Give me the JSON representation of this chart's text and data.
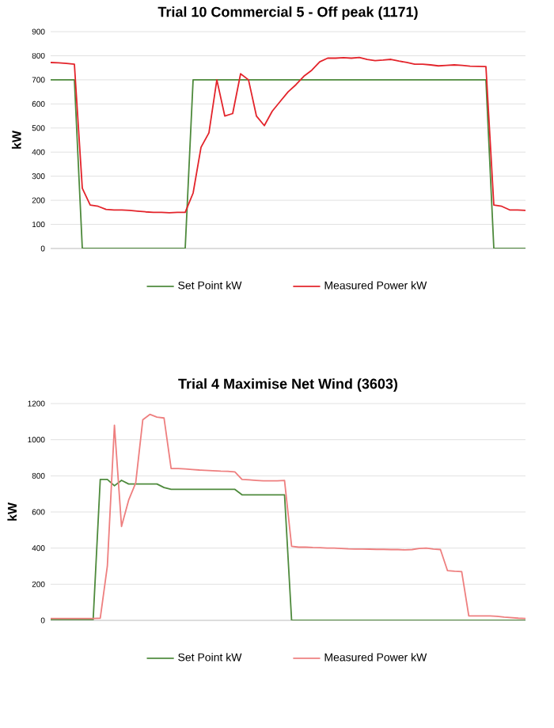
{
  "chart_data": [
    {
      "type": "line",
      "title": "Trial 10 Commercial 5 - Off peak (1171)",
      "ylabel": "kW",
      "ylim": [
        0,
        900
      ],
      "yticks": [
        0,
        100,
        200,
        300,
        400,
        500,
        600,
        700,
        800,
        900
      ],
      "grid": "y",
      "legend": "bottom",
      "marker": "none",
      "categories": [
        null,
        null,
        null,
        null,
        null,
        null,
        null,
        null,
        null,
        null,
        null,
        null,
        null,
        null,
        null,
        null,
        null,
        null,
        null,
        null,
        null,
        null,
        null,
        null,
        null,
        null,
        null,
        null,
        null,
        null,
        null,
        null,
        null,
        null,
        null,
        null,
        null,
        null,
        null,
        null,
        null,
        null,
        null,
        null,
        null,
        null,
        null,
        null,
        null,
        null,
        null,
        null,
        null,
        null,
        null,
        null,
        null,
        null,
        null,
        null,
        null
      ],
      "series": [
        {
          "name": "Set Point kW",
          "color": "#4e8a3c",
          "values": [
            700,
            700,
            700,
            700,
            0,
            0,
            0,
            0,
            0,
            0,
            0,
            0,
            0,
            0,
            0,
            0,
            0,
            0,
            700,
            700,
            700,
            700,
            700,
            700,
            700,
            700,
            700,
            700,
            700,
            700,
            700,
            700,
            700,
            700,
            700,
            700,
            700,
            700,
            700,
            700,
            700,
            700,
            700,
            700,
            700,
            700,
            700,
            700,
            700,
            700,
            700,
            700,
            700,
            700,
            700,
            700,
            0,
            0,
            0,
            0,
            0
          ]
        },
        {
          "name": "Measured Power kW",
          "color": "#e3242b",
          "values": [
            772,
            771,
            768,
            765,
            250,
            180,
            175,
            162,
            160,
            160,
            158,
            155,
            152,
            150,
            150,
            148,
            150,
            150,
            230,
            420,
            480,
            700,
            550,
            560,
            725,
            700,
            550,
            510,
            570,
            610,
            650,
            680,
            715,
            740,
            775,
            790,
            790,
            792,
            790,
            793,
            785,
            780,
            782,
            785,
            778,
            772,
            765,
            765,
            762,
            758,
            760,
            762,
            760,
            757,
            756,
            755,
            180,
            175,
            160,
            160,
            158
          ]
        }
      ]
    },
    {
      "type": "line",
      "title": "Trial 4 Maximise Net Wind (3603)",
      "ylabel": "kW",
      "ylim": [
        0,
        1200
      ],
      "yticks": [
        0,
        200,
        400,
        600,
        800,
        1000,
        1200
      ],
      "grid": "y",
      "legend": "bottom",
      "marker": "none",
      "categories": [
        null,
        null,
        null,
        null,
        null,
        null,
        null,
        null,
        null,
        null,
        null,
        null,
        null,
        null,
        null,
        null,
        null,
        null,
        null,
        null,
        null,
        null,
        null,
        null,
        null,
        null,
        null,
        null,
        null,
        null,
        null,
        null,
        null,
        null,
        null,
        null,
        null,
        null,
        null,
        null,
        null,
        null,
        null,
        null,
        null,
        null,
        null,
        null,
        null,
        null,
        null,
        null,
        null,
        null,
        null,
        null,
        null,
        null,
        null,
        null,
        null,
        null,
        null,
        null,
        null,
        null,
        null,
        null
      ],
      "series": [
        {
          "name": "Set Point kW",
          "color": "#4e8a3c",
          "values": [
            5,
            5,
            5,
            5,
            5,
            5,
            5,
            780,
            780,
            745,
            775,
            755,
            755,
            755,
            755,
            755,
            735,
            725,
            725,
            725,
            725,
            725,
            725,
            725,
            725,
            725,
            725,
            695,
            695,
            695,
            695,
            695,
            695,
            695,
            0,
            0,
            0,
            0,
            0,
            0,
            0,
            0,
            0,
            0,
            0,
            0,
            0,
            0,
            0,
            0,
            0,
            0,
            0,
            0,
            0,
            0,
            0,
            0,
            0,
            0,
            0,
            0,
            0,
            0,
            0,
            0,
            0,
            0
          ]
        },
        {
          "name": "Measured Power kW",
          "color": "#ee7f7f",
          "values": [
            10,
            10,
            10,
            10,
            10,
            10,
            10,
            12,
            300,
            1080,
            520,
            665,
            760,
            1110,
            1140,
            1125,
            1120,
            840,
            840,
            838,
            835,
            832,
            830,
            828,
            826,
            825,
            822,
            780,
            778,
            775,
            772,
            772,
            772,
            775,
            410,
            405,
            405,
            403,
            402,
            400,
            400,
            398,
            396,
            395,
            395,
            394,
            393,
            393,
            392,
            392,
            390,
            392,
            398,
            400,
            395,
            392,
            275,
            272,
            270,
            25,
            25,
            25,
            25,
            22,
            18,
            15,
            12,
            10
          ]
        }
      ]
    }
  ]
}
